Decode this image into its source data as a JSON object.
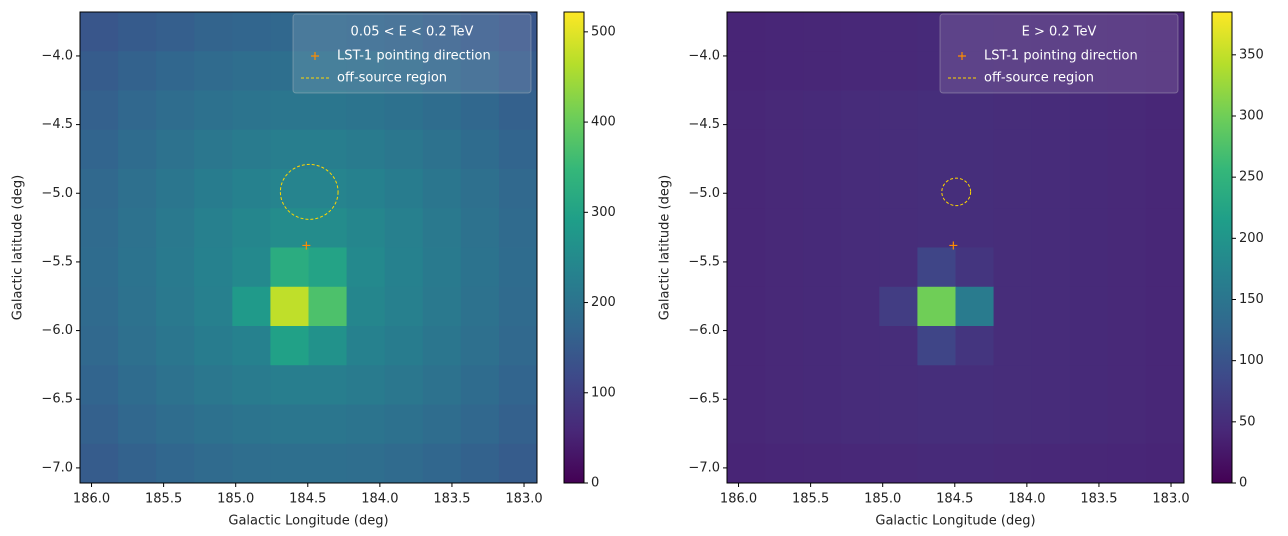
{
  "chart_data": [
    {
      "type": "heatmap",
      "xlabel": "Galactic Longitude (deg)",
      "ylabel": "Galactic latitude (deg)",
      "xlim": [
        186.08,
        182.91
      ],
      "ylim": [
        -7.11,
        -3.68
      ],
      "xticks": [
        {
          "value": 186,
          "label": "186.0"
        },
        {
          "value": 185.5,
          "label": "185.5"
        },
        {
          "value": 185,
          "label": "185.0"
        },
        {
          "value": 184.5,
          "label": "184.5"
        },
        {
          "value": 184,
          "label": "184.0"
        },
        {
          "value": 183.5,
          "label": "183.5"
        },
        {
          "value": 183,
          "label": "183.0"
        }
      ],
      "yticks": [
        {
          "value": -4,
          "label": "−4.0"
        },
        {
          "value": -4.5,
          "label": "−4.5"
        },
        {
          "value": -5,
          "label": "−5.0"
        },
        {
          "value": -5.5,
          "label": "−5.5"
        },
        {
          "value": -6,
          "label": "−6.0"
        },
        {
          "value": -6.5,
          "label": "−6.5"
        },
        {
          "value": -7,
          "label": "−7.0"
        }
      ],
      "colormap": [
        "#440154",
        "#482878",
        "#3e4989",
        "#31688e",
        "#26828e",
        "#1f9e89",
        "#35b779",
        "#6ece58",
        "#b5de2b",
        "#fde725"
      ],
      "clim": [
        0,
        522
      ],
      "cticks": [
        0,
        100,
        200,
        300,
        400,
        500
      ],
      "legend": "upper right",
      "legend_title": "0.05 < E < 0.2 TeV",
      "values": [
        [
          140,
          150,
          158,
          166,
          171,
          174,
          174,
          171,
          166,
          158,
          150,
          140
        ],
        [
          152,
          163,
          172,
          180,
          187,
          190,
          190,
          187,
          180,
          172,
          163,
          152
        ],
        [
          161,
          174,
          185,
          195,
          201,
          206,
          206,
          201,
          195,
          185,
          174,
          161
        ],
        [
          169,
          184,
          196,
          208,
          216,
          222,
          222,
          216,
          208,
          196,
          184,
          169
        ],
        [
          176,
          192,
          206,
          219,
          230,
          236,
          236,
          230,
          219,
          206,
          192,
          176
        ],
        [
          180,
          196,
          212,
          227,
          241,
          252,
          252,
          241,
          227,
          212,
          196,
          180
        ],
        [
          182,
          198,
          214,
          230,
          246,
          322,
          302,
          246,
          230,
          214,
          198,
          182
        ],
        [
          180,
          196,
          212,
          227,
          281,
          472,
          372,
          241,
          227,
          212,
          196,
          180
        ],
        [
          176,
          192,
          206,
          219,
          230,
          296,
          266,
          230,
          219,
          206,
          192,
          176
        ],
        [
          169,
          184,
          196,
          208,
          216,
          222,
          222,
          216,
          208,
          196,
          184,
          169
        ],
        [
          161,
          174,
          185,
          195,
          201,
          206,
          206,
          201,
          195,
          185,
          174,
          161
        ],
        [
          152,
          163,
          172,
          180,
          187,
          190,
          190,
          187,
          180,
          172,
          163,
          152
        ]
      ],
      "series": [
        {
          "name": "LST-1 pointing direction",
          "color": "#ff8c00",
          "x": [
            184.51
          ],
          "y": [
            -5.38
          ]
        },
        {
          "name": "off-source region",
          "color": "#ffd700",
          "center": [
            184.49,
            -4.99
          ],
          "radius": 0.2
        }
      ]
    },
    {
      "type": "heatmap",
      "xlabel": "Galactic Longitude (deg)",
      "ylabel": "Galactic latitude (deg)",
      "xlim": [
        186.08,
        182.91
      ],
      "ylim": [
        -7.11,
        -3.68
      ],
      "xticks": [
        {
          "value": 186,
          "label": "186.0"
        },
        {
          "value": 185.5,
          "label": "185.5"
        },
        {
          "value": 185,
          "label": "185.0"
        },
        {
          "value": 184.5,
          "label": "184.5"
        },
        {
          "value": 184,
          "label": "184.0"
        },
        {
          "value": 183.5,
          "label": "183.5"
        },
        {
          "value": 183,
          "label": "183.0"
        }
      ],
      "yticks": [
        {
          "value": -4,
          "label": "−4.0"
        },
        {
          "value": -4.5,
          "label": "−4.5"
        },
        {
          "value": -5,
          "label": "−5.0"
        },
        {
          "value": -5.5,
          "label": "−5.5"
        },
        {
          "value": -6,
          "label": "−6.0"
        },
        {
          "value": -6.5,
          "label": "−6.5"
        },
        {
          "value": -7,
          "label": "−7.0"
        }
      ],
      "colormap": [
        "#440154",
        "#482878",
        "#3e4989",
        "#31688e",
        "#26828e",
        "#1f9e89",
        "#35b779",
        "#6ece58",
        "#b5de2b",
        "#fde725"
      ],
      "clim": [
        0,
        385
      ],
      "cticks": [
        0,
        50,
        100,
        150,
        200,
        250,
        300,
        350
      ],
      "legend": "upper right",
      "legend_title": "E > 0.2 TeV",
      "values": [
        [
          40,
          41,
          42,
          43,
          44,
          45,
          45,
          44,
          43,
          42,
          41,
          40
        ],
        [
          40,
          41,
          42,
          43,
          44,
          45,
          45,
          44,
          43,
          42,
          41,
          40
        ],
        [
          42,
          44,
          46,
          48,
          49,
          50,
          50,
          49,
          48,
          46,
          44,
          42
        ],
        [
          42,
          44,
          46,
          48,
          49,
          50,
          50,
          49,
          48,
          46,
          44,
          42
        ],
        [
          42,
          44,
          46,
          48,
          49,
          50,
          50,
          49,
          48,
          46,
          44,
          42
        ],
        [
          42,
          44,
          46,
          48,
          49,
          50,
          50,
          49,
          48,
          46,
          44,
          42
        ],
        [
          42,
          44,
          46,
          48,
          49,
          80,
          60,
          49,
          48,
          46,
          44,
          42
        ],
        [
          42,
          44,
          46,
          48,
          70,
          300,
          160,
          49,
          48,
          46,
          44,
          42
        ],
        [
          42,
          44,
          46,
          48,
          49,
          80,
          60,
          49,
          48,
          46,
          44,
          42
        ],
        [
          42,
          44,
          46,
          48,
          49,
          50,
          50,
          49,
          48,
          46,
          44,
          42
        ],
        [
          42,
          44,
          46,
          48,
          49,
          50,
          50,
          49,
          48,
          46,
          44,
          42
        ],
        [
          40,
          41,
          42,
          43,
          44,
          45,
          45,
          44,
          43,
          42,
          41,
          40
        ]
      ],
      "series": [
        {
          "name": "LST-1 pointing direction",
          "color": "#ff8c00",
          "x": [
            184.51
          ],
          "y": [
            -5.38
          ]
        },
        {
          "name": "off-source region",
          "color": "#ffd700",
          "center": [
            184.49,
            -4.99
          ],
          "radius": 0.1
        }
      ]
    }
  ]
}
